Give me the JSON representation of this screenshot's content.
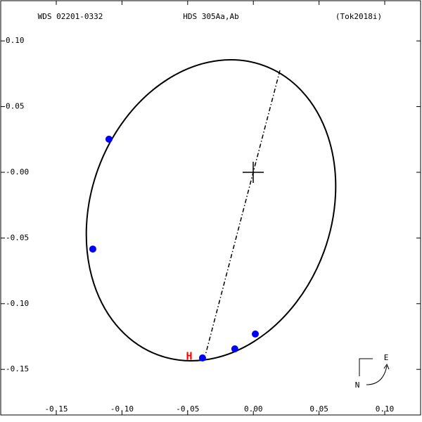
{
  "chart_data": {
    "type": "scatter",
    "title": "HDS 305Aa,Ab",
    "subtitle": "WDS 02201-0332",
    "reference": "(Tok2018i)",
    "x": [
      -0.1099,
      -0.1222,
      -0.0387,
      -0.0141,
      0.0015
    ],
    "values": [
      0.0252,
      -0.0584,
      -0.1413,
      -0.1344,
      -0.1231
    ],
    "color": "#0000ff",
    "marker": {
      "label": "H",
      "x": -0.0488,
      "y": -0.1403,
      "color": "#ff0000"
    },
    "xlim": [
      -0.1923,
      0.1273
    ],
    "ylim": [
      -0.1847,
      0.1306
    ],
    "xticks": [
      {
        "value": -0.15,
        "label": "-0.15"
      },
      {
        "value": -0.1,
        "label": "-0.10"
      },
      {
        "value": -0.05,
        "label": "-0.05"
      },
      {
        "value": 0,
        "label": "0.00"
      },
      {
        "value": 0.05,
        "label": "0.05"
      },
      {
        "value": 0.1,
        "label": "0.10"
      }
    ],
    "yticks": [
      {
        "value": 0.1,
        "label": "0.10"
      },
      {
        "value": 0.05,
        "label": "0.05"
      },
      {
        "value": 0,
        "label": "-0.00"
      },
      {
        "value": -0.05,
        "label": "-0.05"
      },
      {
        "value": -0.1,
        "label": "-0.10"
      },
      {
        "value": -0.15,
        "label": "-0.15"
      }
    ],
    "compass": {
      "east": "E",
      "north": "N"
    }
  }
}
